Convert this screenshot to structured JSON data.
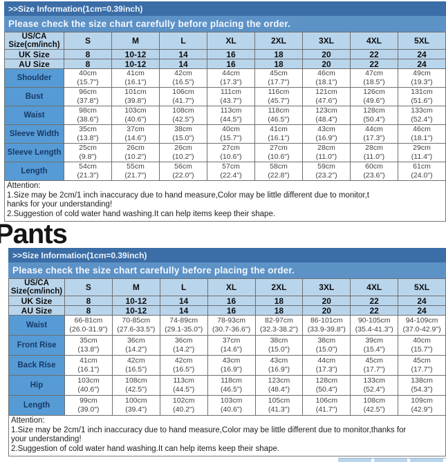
{
  "colors": {
    "bar-dark": "#3b6da6",
    "bar-mid": "#5d92c7",
    "cell-light": "#b9d5ec",
    "cell-label": "#569bd5",
    "border": "#6e6e6e",
    "label-text": "#173a66",
    "data-text": "#3f3f3f"
  },
  "pants_heading": "Pants",
  "shirt": {
    "title": ">>Size Information(1cm=0.39inch)",
    "subtitle": "Please check the size chart carefully before placing the order.",
    "table": {
      "corner": [
        "US/CA",
        "Size(cm/inch)"
      ],
      "sizes": [
        "S",
        "M",
        "L",
        "XL",
        "2XL",
        "3XL",
        "4XL",
        "5XL"
      ],
      "size_rows": [
        {
          "label": "UK Size",
          "values": [
            "8",
            "10-12",
            "14",
            "16",
            "18",
            "20",
            "22",
            "24"
          ]
        },
        {
          "label": "AU Size",
          "values": [
            "8",
            "10-12",
            "14",
            "16",
            "18",
            "20",
            "22",
            "24"
          ]
        }
      ],
      "rows": [
        {
          "label": "Shoulder",
          "cm": [
            "40cm",
            "41cm",
            "42cm",
            "44cm",
            "45cm",
            "46cm",
            "47cm",
            "49cm"
          ],
          "in": [
            "(15.7\")",
            "(16.1\")",
            "(16.5\")",
            "(17.3\")",
            "(17.7\")",
            "(18.1\")",
            "(18.5\")",
            "(19.3\")"
          ]
        },
        {
          "label": "Bust",
          "cm": [
            "96cm",
            "101cm",
            "106cm",
            "111cm",
            "116cm",
            "121cm",
            "126cm",
            "131cm"
          ],
          "in": [
            "(37.8\")",
            "(39.8\")",
            "(41.7\")",
            "(43.7\")",
            "(45.7\")",
            "(47.6\")",
            "(49.6\")",
            "(51.6\")"
          ]
        },
        {
          "label": "Waist",
          "cm": [
            "98cm",
            "103cm",
            "108cm",
            "113cm",
            "118cm",
            "123cm",
            "128cm",
            "133cm"
          ],
          "in": [
            "(38.6\")",
            "(40.6\")",
            "(42.5\")",
            "(44.5\")",
            "(46.5\")",
            "(48.4\")",
            "(50.4\")",
            "(52.4\")"
          ]
        },
        {
          "label": "Sleeve Width",
          "cm": [
            "35cm",
            "37cm",
            "38cm",
            "40cm",
            "41cm",
            "43cm",
            "44cm",
            "46cm"
          ],
          "in": [
            "(13.8\")",
            "(14.6\")",
            "(15.0\")",
            "(15.7\")",
            "(16.1\")",
            "(16.9\")",
            "(17.3\")",
            "(18.1\")"
          ]
        },
        {
          "label": "Sleeve Length",
          "cm": [
            "25cm",
            "26cm",
            "26cm",
            "27cm",
            "27cm",
            "28cm",
            "28cm",
            "29cm"
          ],
          "in": [
            "(9.8\")",
            "(10.2\")",
            "(10.2\")",
            "(10.6\")",
            "(10.6\")",
            "(11.0\")",
            "(11.0\")",
            "(11.4\")"
          ]
        },
        {
          "label": "Length",
          "cm": [
            "54cm",
            "55cm",
            "56cm",
            "57cm",
            "58cm",
            "59cm",
            "60cm",
            "61cm"
          ],
          "in": [
            "(21.3\")",
            "(21.7\")",
            "(22.0\")",
            "(22.4\")",
            "(22.8\")",
            "(23.2\")",
            "(23.6\")",
            "(24.0\")"
          ]
        }
      ]
    },
    "attention": {
      "lines": [
        "Attention:",
        "1.Size may be 2cm/1 inch inaccuracy due to hand measure,Color may be little different due to monitor,t",
        "hanks for your understanding!",
        "2.Suggestion of cold water hand washing.It can help items keep their shape."
      ]
    }
  },
  "pants": {
    "title": ">>Size Information(1cm=0.39inch)",
    "subtitle": "Please check the size chart carefully before placing the order.",
    "table": {
      "corner": [
        "US/CA",
        "Size(cm/inch)"
      ],
      "sizes": [
        "S",
        "M",
        "L",
        "XL",
        "2XL",
        "3XL",
        "4XL",
        "5XL"
      ],
      "size_rows": [
        {
          "label": "UK Size",
          "values": [
            "8",
            "10-12",
            "14",
            "16",
            "18",
            "20",
            "22",
            "24"
          ]
        },
        {
          "label": "AU Size",
          "values": [
            "8",
            "10-12",
            "14",
            "16",
            "18",
            "20",
            "22",
            "24"
          ]
        }
      ],
      "rows": [
        {
          "label": "Waist",
          "cm": [
            "66-81cm",
            "70-85cm",
            "74-89cm",
            "78-93cm",
            "82-97cm",
            "86-101cm",
            "90-105cm",
            "94-109cm"
          ],
          "in": [
            "(26.0-31.9\")",
            "(27.6-33.5\")",
            "(29.1-35.0\")",
            "(30.7-36.6\")",
            "(32.3-38.2\")",
            "(33.9-39.8\")",
            "(35.4-41.3\")",
            "(37.0-42.9\")"
          ]
        },
        {
          "label": "Front Rise",
          "cm": [
            "35cm",
            "36cm",
            "36cm",
            "37cm",
            "38cm",
            "38cm",
            "39cm",
            "40cm"
          ],
          "in": [
            "(13.8\")",
            "(14.2\")",
            "(14.2\")",
            "(14.6\")",
            "(15.0\")",
            "(15.0\")",
            "(15.4\")",
            "(15.7\")"
          ]
        },
        {
          "label": "Back Rise",
          "cm": [
            "41cm",
            "42cm",
            "42cm",
            "43cm",
            "43cm",
            "44cm",
            "45cm",
            "45cm"
          ],
          "in": [
            "(16.1\")",
            "(16.5\")",
            "(16.5\")",
            "(16.9\")",
            "(16.9\")",
            "(17.3\")",
            "(17.7\")",
            "(17.7\")"
          ]
        },
        {
          "label": "Hip",
          "cm": [
            "103cm",
            "108cm",
            "113cm",
            "118cm",
            "123cm",
            "128cm",
            "133cm",
            "138cm"
          ],
          "in": [
            "(40.6\")",
            "(42.5\")",
            "(44.5\")",
            "(46.5\")",
            "(48.4\")",
            "(50.4\")",
            "(52.4\")",
            "(54.3\")"
          ]
        },
        {
          "label": "Length",
          "cm": [
            "99cm",
            "100cm",
            "102cm",
            "103cm",
            "105cm",
            "106cm",
            "108cm",
            "109cm"
          ],
          "in": [
            "(39.0\")",
            "(39.4\")",
            "(40.2\")",
            "(40.6\")",
            "(41.3\")",
            "(41.7\")",
            "(42.5\")",
            "(42.9\")"
          ]
        }
      ]
    },
    "attention": {
      "lines": [
        "Attention:",
        "1.Size may be 2cm/1 inch inaccuracy due to hand measure,Color may be little different due to monitor,thanks for",
        "your understanding!",
        "2.Suggestion of cold water hand washing.It can help items keep their shape."
      ]
    }
  }
}
